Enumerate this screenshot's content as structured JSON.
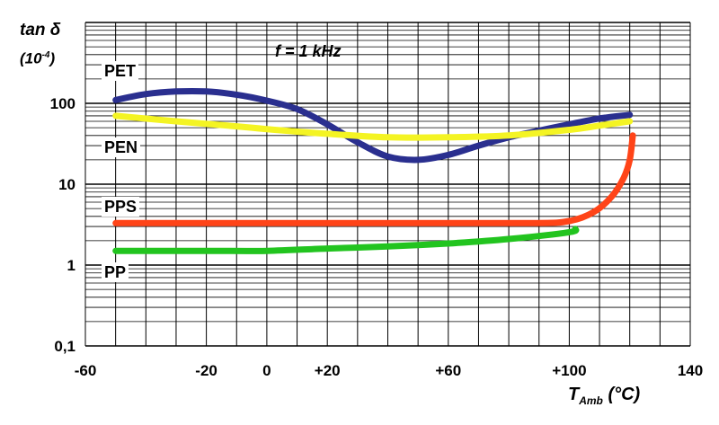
{
  "chart_data": {
    "type": "line",
    "title": "",
    "ylabel": "tan δ",
    "ylabel_unit_base": "(10",
    "ylabel_unit_exp": "-4",
    "ylabel_unit_close": ")",
    "xlabel_symbol": "T",
    "xlabel_sub": "Amb",
    "xlabel_unit": " (°C)",
    "annotation": "f = 1 kHz",
    "y_scale": "log",
    "ylim": [
      0.1,
      1000
    ],
    "xlim": [
      -60,
      140
    ],
    "x_ticks": [
      {
        "value": -60,
        "label": "-60"
      },
      {
        "value": -20,
        "label": "-20"
      },
      {
        "value": 0,
        "label": "0"
      },
      {
        "value": 20,
        "label": "+20"
      },
      {
        "value": 60,
        "label": "+60"
      },
      {
        "value": 100,
        "label": "+100"
      },
      {
        "value": 140,
        "label": "140"
      }
    ],
    "y_ticks": [
      {
        "value": 0.1,
        "label": "0,1"
      },
      {
        "value": 1,
        "label": "1"
      },
      {
        "value": 10,
        "label": "10"
      },
      {
        "value": 100,
        "label": "100"
      }
    ],
    "grid": true,
    "series": [
      {
        "name": "PET",
        "color": "#2a2f8f",
        "x": [
          -50,
          -40,
          -30,
          -20,
          -10,
          0,
          10,
          20,
          30,
          40,
          50,
          60,
          70,
          80,
          90,
          100,
          110,
          120
        ],
        "y": [
          110,
          130,
          140,
          140,
          128,
          108,
          85,
          55,
          33,
          22,
          20,
          23,
          30,
          38,
          46,
          55,
          65,
          72
        ]
      },
      {
        "name": "PEN",
        "color": "#f4f423",
        "x": [
          -50,
          -30,
          -10,
          0,
          20,
          40,
          60,
          80,
          100,
          110,
          120
        ],
        "y": [
          70,
          60,
          52,
          48,
          42,
          38,
          38,
          40,
          47,
          53,
          60
        ]
      },
      {
        "name": "PPS",
        "color": "#ff4418",
        "x": [
          -50,
          0,
          50,
          88,
          100,
          108,
          114,
          118,
          120,
          121
        ],
        "y": [
          3.3,
          3.3,
          3.3,
          3.3,
          3.5,
          4.5,
          7,
          12,
          20,
          40
        ]
      },
      {
        "name": "PP",
        "color": "#22c41f",
        "x": [
          -50,
          -20,
          0,
          20,
          40,
          60,
          80,
          100,
          102
        ],
        "y": [
          1.5,
          1.5,
          1.5,
          1.6,
          1.7,
          1.85,
          2.1,
          2.55,
          2.8
        ]
      }
    ]
  }
}
